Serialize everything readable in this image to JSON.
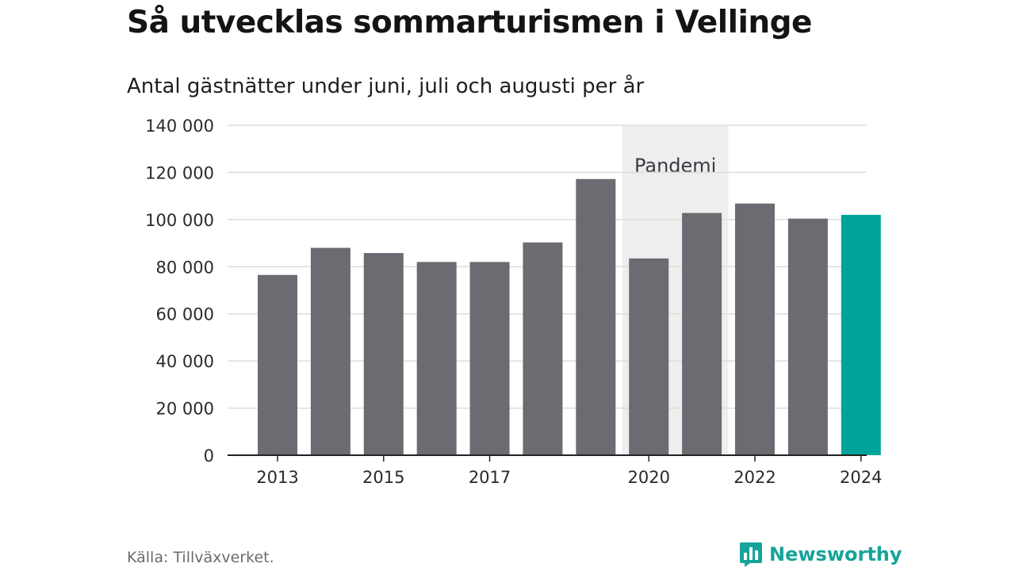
{
  "title": "Så utvecklas sommarturismen i Vellinge",
  "subtitle": "Antal gästnätter under juni, juli och augusti per år",
  "source": "Källa: Tillväxverket.",
  "brand": "Newsworthy",
  "colors": {
    "bar": "#6c6b71",
    "highlight": "#00a39a",
    "band": "#eeeeee",
    "grid": "#dddddd",
    "axis": "#222222",
    "brand": "#16a39a"
  },
  "chart_data": {
    "type": "bar",
    "categories": [
      "2013",
      "2014",
      "2015",
      "2016",
      "2017",
      "2018",
      "2019",
      "2020",
      "2021",
      "2022",
      "2023",
      "2024"
    ],
    "x_tick_labels": [
      "2013",
      "2015",
      "2017",
      "2020",
      "2022",
      "2024"
    ],
    "values": [
      76500,
      88000,
      85800,
      82000,
      82000,
      90300,
      117200,
      83500,
      102800,
      106800,
      100400,
      102000
    ],
    "highlight_category": "2024",
    "ylim": [
      0,
      140000
    ],
    "y_ticks": [
      0,
      20000,
      40000,
      60000,
      80000,
      100000,
      120000,
      140000
    ],
    "y_tick_labels": [
      "0",
      "20 000",
      "40 000",
      "60 000",
      "80 000",
      "100 000",
      "120 000",
      "140 000"
    ],
    "grid": true,
    "annotations": [
      {
        "text": "Pandemi",
        "band_from": "2020",
        "band_to": "2021"
      }
    ],
    "xlabel": "",
    "ylabel": ""
  }
}
